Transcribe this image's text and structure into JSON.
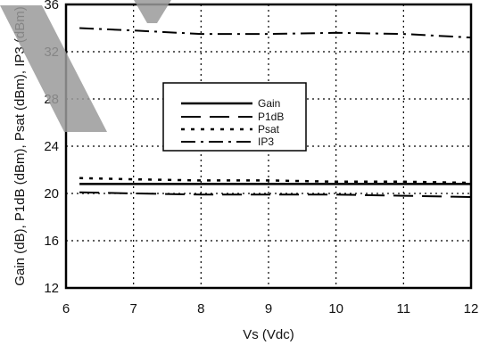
{
  "chart_data": {
    "type": "line",
    "title": "",
    "xlabel": "Vs (Vdc)",
    "ylabel": "Gain (dB), P1dB (dBm), Psat (dBm), IP3 (dBm)",
    "xlim": [
      6,
      12
    ],
    "ylim": [
      12,
      36
    ],
    "xticks": [
      6,
      7,
      8,
      9,
      10,
      11,
      12
    ],
    "yticks": [
      12,
      16,
      20,
      24,
      28,
      32,
      36
    ],
    "grid": true,
    "legend_position": "center",
    "x": [
      6.2,
      7,
      8,
      9,
      10,
      11,
      12
    ],
    "series": [
      {
        "name": "Gain",
        "dash": "solid",
        "values": [
          20.8,
          20.8,
          20.8,
          20.8,
          20.8,
          20.8,
          20.8
        ]
      },
      {
        "name": "P1dB",
        "dash": "long-dash",
        "values": [
          20.1,
          20.0,
          19.9,
          19.9,
          19.9,
          19.8,
          19.7
        ]
      },
      {
        "name": "Psat",
        "dash": "dotted",
        "values": [
          21.3,
          21.2,
          21.1,
          21.1,
          21.0,
          21.0,
          20.9
        ]
      },
      {
        "name": "IP3",
        "dash": "dash-dot",
        "values": [
          34.0,
          33.8,
          33.5,
          33.5,
          33.6,
          33.5,
          33.2
        ]
      }
    ]
  }
}
